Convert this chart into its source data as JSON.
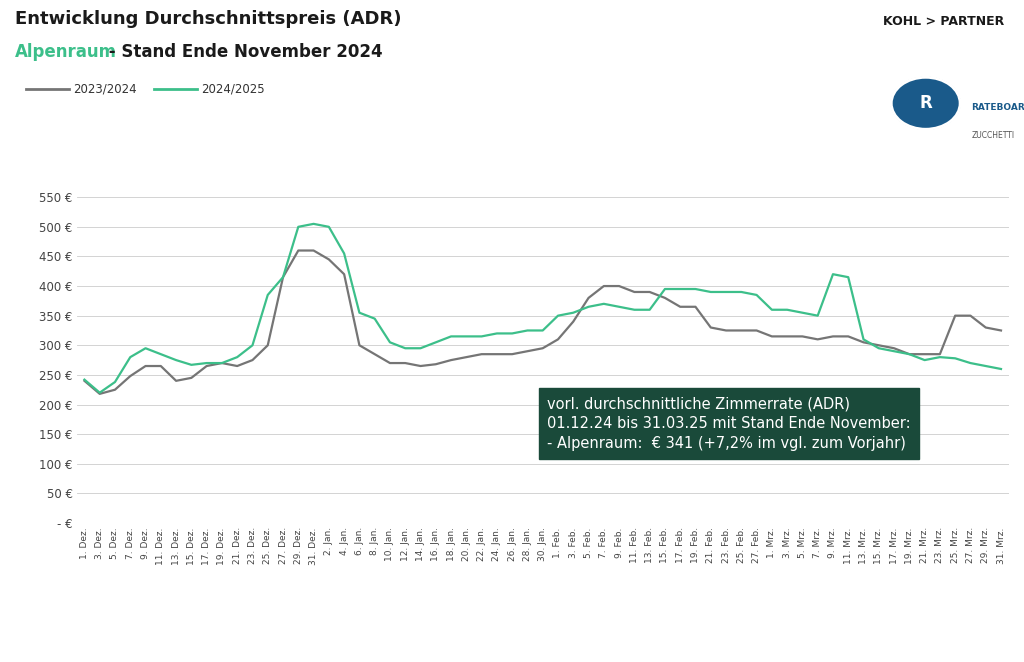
{
  "title_line1": "Entwicklung Durchschnittspreis (ADR)",
  "title_line2_colored": "Alpenraum",
  "title_line2_rest": " - Stand Ende November 2024",
  "legend_2023": "2023/2024",
  "legend_2024": "2024/2025",
  "color_2023": "#757575",
  "color_2024": "#3cbf8a",
  "color_title_colored": "#3cbf8a",
  "color_title_black": "#1a1a1a",
  "background_color": "#ffffff",
  "ylim": [
    0,
    570
  ],
  "yticks": [
    0,
    50,
    100,
    150,
    200,
    250,
    300,
    350,
    400,
    450,
    500,
    550
  ],
  "ytick_labels": [
    "- €",
    "50 €",
    "100 €",
    "150 €",
    "200 €",
    "250 €",
    "300 €",
    "350 €",
    "400 €",
    "450 €",
    "500 €",
    "550 €"
  ],
  "annotation_box": {
    "text": "vorl. durchschnittliche Zimmerrate (ADR)\n01.12.24 bis 31.03.25 mit Stand Ende November:\n- Alpenraum:  € 341 (+7,2% im vgl. zum Vorjahr)",
    "bg_color": "#1a4a3a",
    "text_color": "#ffffff",
    "fontsize": 10.5
  },
  "x_labels": [
    "1. Dez.",
    "3. Dez.",
    "5. Dez.",
    "7. Dez.",
    "9. Dez.",
    "11. Dez.",
    "13. Dez.",
    "15. Dez.",
    "17. Dez.",
    "19. Dez.",
    "21. Dez.",
    "23. Dez.",
    "25. Dez.",
    "27. Dez.",
    "29. Dez.",
    "31. Dez.",
    "2. Jan.",
    "4. Jan.",
    "6. Jan.",
    "8. Jan.",
    "10. Jan.",
    "12. Jan.",
    "14. Jan.",
    "16. Jan.",
    "18. Jan.",
    "20. Jan.",
    "22. Jan.",
    "24. Jan.",
    "26. Jan.",
    "28. Jan.",
    "30. Jan.",
    "1. Feb.",
    "3. Feb.",
    "5. Feb.",
    "7. Feb.",
    "9. Feb.",
    "11. Feb.",
    "13. Feb.",
    "15. Feb.",
    "17. Feb.",
    "19. Feb.",
    "21. Feb.",
    "23. Feb.",
    "25. Feb.",
    "27. Feb.",
    "1. Mrz.",
    "3. Mrz.",
    "5. Mrz.",
    "7. Mrz.",
    "9. Mrz.",
    "11. Mrz.",
    "13. Mrz.",
    "15. Mrz.",
    "17. Mrz.",
    "19. Mrz.",
    "21. Mrz.",
    "23. Mrz.",
    "25. Mrz.",
    "27. Mrz.",
    "29. Mrz.",
    "31. Mrz."
  ],
  "series_2023": [
    240,
    218,
    225,
    248,
    265,
    265,
    240,
    245,
    265,
    270,
    265,
    275,
    300,
    415,
    460,
    460,
    445,
    420,
    300,
    285,
    270,
    270,
    265,
    268,
    275,
    280,
    285,
    285,
    285,
    290,
    295,
    310,
    340,
    380,
    400,
    400,
    390,
    390,
    380,
    365,
    365,
    330,
    325,
    325,
    325,
    315,
    315,
    315,
    310,
    315,
    315,
    305,
    300,
    295,
    285,
    285,
    285,
    350,
    350,
    330,
    325
  ],
  "series_2024": [
    242,
    220,
    238,
    280,
    295,
    285,
    275,
    267,
    270,
    270,
    280,
    300,
    385,
    415,
    500,
    505,
    500,
    455,
    355,
    345,
    305,
    295,
    295,
    305,
    315,
    315,
    315,
    320,
    320,
    325,
    325,
    350,
    355,
    365,
    370,
    365,
    360,
    360,
    395,
    395,
    395,
    390,
    390,
    390,
    385,
    360,
    360,
    355,
    350,
    420,
    415,
    310,
    295,
    290,
    285,
    275,
    280,
    278,
    270,
    265,
    260
  ]
}
